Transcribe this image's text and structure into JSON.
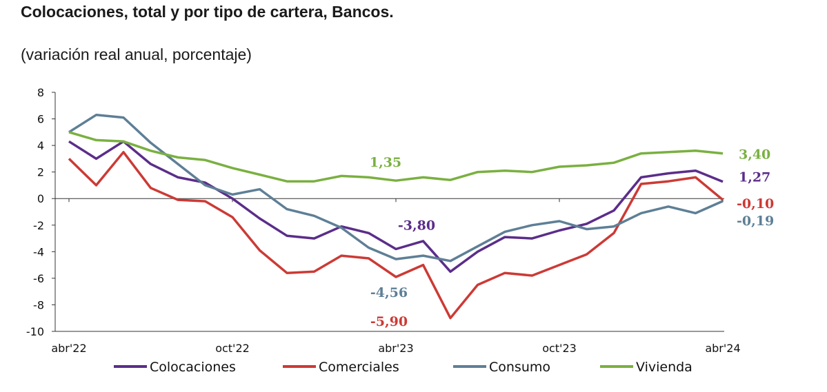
{
  "title": "Colocaciones, total y por tipo de cartera, Bancos.",
  "subtitle": "(variación real anual, porcentaje)",
  "chart_data": {
    "type": "line",
    "title": "Colocaciones, total y por tipo de cartera, Bancos.",
    "subtitle": "(variación real anual, porcentaje)",
    "x_tick_labels": [
      "abr'22",
      "oct'22",
      "abr'23",
      "oct'23",
      "abr'24"
    ],
    "x": [
      "abr'22",
      "may'22",
      "jun'22",
      "jul'22",
      "ago'22",
      "sep'22",
      "oct'22",
      "nov'22",
      "dic'22",
      "ene'23",
      "feb'23",
      "mar'23",
      "abr'23",
      "may'23",
      "jun'23",
      "jul'23",
      "ago'23",
      "sep'23",
      "oct'23",
      "nov'23",
      "dic'23",
      "ene'24",
      "feb'24",
      "mar'24",
      "abr'24"
    ],
    "ylim": [
      -10,
      8
    ],
    "yticks": [
      -10,
      -8,
      -6,
      -4,
      -2,
      0,
      2,
      4,
      6,
      8
    ],
    "grid": false,
    "legend_position": "bottom",
    "series": [
      {
        "name": "Colocaciones",
        "color": "#5b2d8a",
        "values": [
          4.3,
          3.0,
          4.3,
          2.6,
          1.6,
          1.2,
          0.0,
          -1.5,
          -2.8,
          -3.0,
          -2.1,
          -2.6,
          -3.8,
          -3.2,
          -5.5,
          -4.0,
          -2.9,
          -3.0,
          -2.4,
          -1.9,
          -0.9,
          1.6,
          1.9,
          2.1,
          1.27
        ]
      },
      {
        "name": "Comerciales",
        "color": "#cc3a35",
        "values": [
          3.0,
          1.0,
          3.5,
          0.8,
          -0.1,
          -0.2,
          -1.4,
          -3.9,
          -5.6,
          -5.5,
          -4.3,
          -4.5,
          -5.9,
          -5.0,
          -9.0,
          -6.5,
          -5.6,
          -5.8,
          -5.0,
          -4.2,
          -2.6,
          1.1,
          1.3,
          1.6,
          -0.1
        ]
      },
      {
        "name": "Consumo",
        "color": "#5e7f96",
        "values": [
          5.0,
          6.3,
          6.1,
          4.2,
          2.6,
          1.0,
          0.3,
          0.7,
          -0.8,
          -1.3,
          -2.2,
          -3.7,
          -4.56,
          -4.3,
          -4.7,
          -3.6,
          -2.5,
          -2.0,
          -1.7,
          -2.3,
          -2.1,
          -1.1,
          -0.6,
          -1.1,
          -0.19
        ]
      },
      {
        "name": "Vivienda",
        "color": "#7ab040",
        "values": [
          5.0,
          4.4,
          4.3,
          3.6,
          3.1,
          2.9,
          2.3,
          1.8,
          1.3,
          1.3,
          1.7,
          1.6,
          1.35,
          1.6,
          1.4,
          2.0,
          2.1,
          2.0,
          2.4,
          2.5,
          2.7,
          3.4,
          3.5,
          3.6,
          3.4
        ]
      }
    ],
    "annotations": [
      {
        "text": "1,35",
        "series": "Vivienda",
        "color": "#7ab040"
      },
      {
        "text": "-3,80",
        "series": "Colocaciones",
        "color": "#5b2d8a"
      },
      {
        "text": "-4,56",
        "series": "Consumo",
        "color": "#5e7f96"
      },
      {
        "text": "-5,90",
        "series": "Comerciales",
        "color": "#cc3a35"
      },
      {
        "text": "3,40",
        "series": "Vivienda",
        "color": "#7ab040"
      },
      {
        "text": "1,27",
        "series": "Colocaciones",
        "color": "#5b2d8a"
      },
      {
        "text": "-0,10",
        "series": "Comerciales",
        "color": "#cc3a35"
      },
      {
        "text": "-0,19",
        "series": "Consumo",
        "color": "#5e7f96"
      }
    ]
  }
}
